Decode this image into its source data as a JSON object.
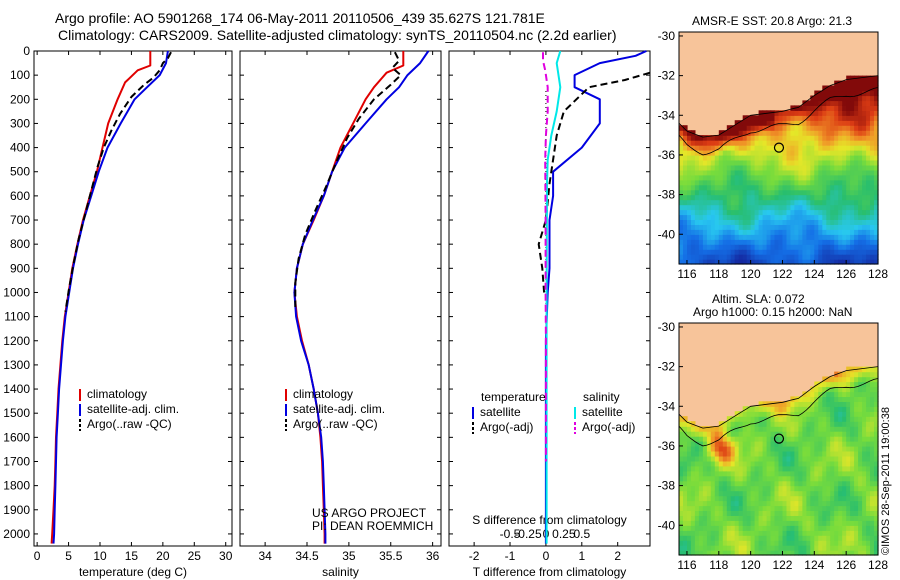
{
  "header": {
    "line1": "Argo profile: AO 5901268_174 06-May-2011 20110506_439 35.627S 121.781E",
    "line2": "Climatology: CARS2009. Satellite-adjusted climatology: synTS_20110504.nc (2.2d earlier)"
  },
  "credits": {
    "project": "US ARGO PROJECT",
    "pi": "PI: DEAN ROEMMICH",
    "imos": "©IMOS 28-Sep-2011 19:00:38"
  },
  "colors": {
    "climatology": "#e00000",
    "satellite": "#0000e0",
    "argo": "#000000",
    "salinity_satellite": "#00e8e8",
    "salinity_argo": "#e000e0",
    "land": "#f7c49a"
  },
  "chart_data": [
    {
      "type": "line",
      "panel": "temperature",
      "xlabel": "temperature (deg C)",
      "ylabel": "",
      "xlim": [
        -0.5,
        31
      ],
      "ylim": [
        2050,
        0
      ],
      "xticks": [
        0,
        5,
        10,
        15,
        20,
        25,
        30
      ],
      "yticks": [
        0,
        100,
        200,
        300,
        400,
        500,
        600,
        700,
        800,
        900,
        1000,
        1100,
        1200,
        1300,
        1400,
        1500,
        1600,
        1700,
        1800,
        1900,
        2000
      ],
      "legend": [
        "climatology",
        "satellite-adj. clim.",
        "Argo(..raw -QC)"
      ],
      "series": [
        {
          "name": "climatology",
          "style": "solid",
          "points": [
            [
              18,
              0
            ],
            [
              18,
              60
            ],
            [
              16,
              80
            ],
            [
              14,
              130
            ],
            [
              12.8,
              200
            ],
            [
              11.3,
              300
            ],
            [
              10.4,
              400
            ],
            [
              9.5,
              500
            ],
            [
              8.4,
              600
            ],
            [
              7.3,
              700
            ],
            [
              6.4,
              800
            ],
            [
              5.6,
              900
            ],
            [
              5,
              1000
            ],
            [
              4.4,
              1100
            ],
            [
              4,
              1200
            ],
            [
              3.7,
              1300
            ],
            [
              3.4,
              1400
            ],
            [
              3.2,
              1500
            ],
            [
              3,
              1600
            ],
            [
              2.9,
              1700
            ],
            [
              2.8,
              1800
            ],
            [
              2.6,
              1900
            ],
            [
              2.4,
              2000
            ],
            [
              2.3,
              2040
            ]
          ]
        },
        {
          "name": "satellite-adj. clim.",
          "style": "solid",
          "points": [
            [
              20.8,
              0
            ],
            [
              20.5,
              50
            ],
            [
              19.5,
              100
            ],
            [
              17.5,
              150
            ],
            [
              15.5,
              200
            ],
            [
              13.3,
              300
            ],
            [
              11.2,
              400
            ],
            [
              9.8,
              500
            ],
            [
              8.6,
              600
            ],
            [
              7.4,
              700
            ],
            [
              6.5,
              800
            ],
            [
              5.7,
              900
            ],
            [
              5.1,
              1000
            ],
            [
              4.5,
              1100
            ],
            [
              4.1,
              1200
            ],
            [
              3.8,
              1300
            ],
            [
              3.5,
              1400
            ],
            [
              3.3,
              1500
            ],
            [
              3.1,
              1600
            ],
            [
              3,
              1700
            ],
            [
              2.9,
              1800
            ],
            [
              2.8,
              1900
            ],
            [
              2.7,
              2000
            ],
            [
              2.6,
              2040
            ]
          ]
        },
        {
          "name": "Argo(..raw -QC)",
          "style": "dashed",
          "points": [
            [
              21.3,
              5
            ],
            [
              20.8,
              30
            ],
            [
              20,
              50
            ],
            [
              19.5,
              80
            ],
            [
              18.5,
              110
            ],
            [
              17,
              140
            ],
            [
              15,
              190
            ],
            [
              13.2,
              260
            ],
            [
              11.8,
              330
            ],
            [
              10.6,
              400
            ],
            [
              9.6,
              480
            ],
            [
              8.6,
              580
            ],
            [
              7.6,
              680
            ],
            [
              6.6,
              780
            ],
            [
              5.8,
              880
            ],
            [
              5.1,
              980
            ],
            [
              4.5,
              1080
            ]
          ]
        }
      ]
    },
    {
      "type": "line",
      "panel": "salinity",
      "xlabel": "salinity",
      "ylabel": "",
      "xlim": [
        33.7,
        36.1
      ],
      "ylim": [
        2050,
        0
      ],
      "xticks": [
        34,
        34.5,
        35,
        35.5,
        36
      ],
      "legend": [
        "climatology",
        "satellite-adj. clim.",
        "Argo(..raw -QC)"
      ],
      "series": [
        {
          "name": "climatology",
          "style": "solid",
          "points": [
            [
              35.65,
              0
            ],
            [
              35.65,
              60
            ],
            [
              35.45,
              90
            ],
            [
              35.3,
              150
            ],
            [
              35.2,
              200
            ],
            [
              35.05,
              300
            ],
            [
              34.9,
              400
            ],
            [
              34.8,
              500
            ],
            [
              34.7,
              600
            ],
            [
              34.58,
              700
            ],
            [
              34.45,
              800
            ],
            [
              34.38,
              900
            ],
            [
              34.35,
              1000
            ],
            [
              34.38,
              1100
            ],
            [
              34.44,
              1200
            ],
            [
              34.52,
              1300
            ],
            [
              34.58,
              1400
            ],
            [
              34.63,
              1500
            ],
            [
              34.66,
              1600
            ],
            [
              34.68,
              1700
            ],
            [
              34.69,
              1800
            ],
            [
              34.7,
              1900
            ],
            [
              34.71,
              2000
            ],
            [
              34.71,
              2040
            ]
          ]
        },
        {
          "name": "satellite-adj. clim.",
          "style": "solid",
          "points": [
            [
              35.95,
              0
            ],
            [
              35.85,
              50
            ],
            [
              35.7,
              100
            ],
            [
              35.6,
              150
            ],
            [
              35.45,
              200
            ],
            [
              35.2,
              300
            ],
            [
              34.95,
              400
            ],
            [
              34.8,
              500
            ],
            [
              34.7,
              600
            ],
            [
              34.57,
              700
            ],
            [
              34.45,
              800
            ],
            [
              34.38,
              900
            ],
            [
              34.35,
              1000
            ],
            [
              34.37,
              1100
            ],
            [
              34.43,
              1200
            ],
            [
              34.52,
              1300
            ],
            [
              34.58,
              1400
            ],
            [
              34.63,
              1500
            ],
            [
              34.67,
              1600
            ],
            [
              34.69,
              1700
            ],
            [
              34.7,
              1800
            ],
            [
              34.71,
              1900
            ],
            [
              34.72,
              2000
            ],
            [
              34.72,
              2040
            ]
          ]
        },
        {
          "name": "Argo(..raw -QC)",
          "style": "dashed",
          "points": [
            [
              35.55,
              5
            ],
            [
              35.6,
              40
            ],
            [
              35.52,
              70
            ],
            [
              35.62,
              100
            ],
            [
              35.5,
              140
            ],
            [
              35.3,
              200
            ],
            [
              35.12,
              280
            ],
            [
              34.98,
              360
            ],
            [
              34.85,
              460
            ],
            [
              34.73,
              560
            ],
            [
              34.6,
              660
            ],
            [
              34.48,
              760
            ],
            [
              34.4,
              860
            ],
            [
              34.36,
              960
            ],
            [
              34.36,
              1060
            ]
          ]
        }
      ]
    },
    {
      "type": "line",
      "panel": "difference",
      "xlabel": "T difference from climatology",
      "xlabel_top": "S difference from climatology",
      "ylabel": "",
      "xlim": [
        -2.7,
        2.9
      ],
      "ylim": [
        2050,
        0
      ],
      "xticks": [
        -2,
        -1,
        0,
        1,
        2
      ],
      "xticks_top": [
        "-0.5",
        "-0.25",
        "0",
        "0.25",
        "0.5"
      ],
      "legend_temperature": {
        "heading": "temperature",
        "items": [
          "satellite",
          "Argo(-adj)"
        ]
      },
      "legend_salinity": {
        "heading": "salinity",
        "items": [
          "satellite",
          "Argo(-adj)"
        ]
      },
      "series": [
        {
          "name": "temperature satellite",
          "style": "solid",
          "points": [
            [
              2.8,
              0
            ],
            [
              2.5,
              20
            ],
            [
              1.5,
              50
            ],
            [
              0.8,
              100
            ],
            [
              0.8,
              150
            ],
            [
              1.5,
              200
            ],
            [
              1.5,
              300
            ],
            [
              1,
              400
            ],
            [
              0.2,
              500
            ],
            [
              0.2,
              600
            ],
            [
              0.1,
              700
            ],
            [
              0.1,
              800
            ],
            [
              0.1,
              900
            ],
            [
              0.05,
              1000
            ],
            [
              0,
              1200
            ],
            [
              0,
              2040
            ]
          ]
        },
        {
          "name": "temperature Argo(-adj)",
          "style": "dashed",
          "points": [
            [
              2.9,
              90
            ],
            [
              2.2,
              120
            ],
            [
              1.2,
              150
            ],
            [
              0.5,
              250
            ],
            [
              0.3,
              350
            ],
            [
              0.2,
              450
            ],
            [
              0.1,
              550
            ],
            [
              0,
              700
            ],
            [
              -0.2,
              800
            ],
            [
              -0.1,
              900
            ],
            [
              -0.05,
              1000
            ]
          ]
        },
        {
          "name": "salinity satellite",
          "style": "solid",
          "points": [
            [
              0.4,
              0
            ],
            [
              0.3,
              50
            ],
            [
              0.4,
              150
            ],
            [
              0.3,
              250
            ],
            [
              0.15,
              350
            ],
            [
              0.05,
              450
            ],
            [
              0.03,
              550
            ],
            [
              0.02,
              1000
            ],
            [
              0.02,
              2040
            ]
          ]
        },
        {
          "name": "salinity Argo(-adj)",
          "style": "dashed",
          "points": [
            [
              -0.08,
              5
            ],
            [
              -0.08,
              40
            ],
            [
              -0.02,
              80
            ],
            [
              0.05,
              150
            ],
            [
              0.05,
              250
            ],
            [
              0.0,
              350
            ],
            [
              -0.02,
              450
            ],
            [
              -0.01,
              700
            ],
            [
              -0.01,
              1000
            ],
            [
              0,
              1200
            ],
            [
              0,
              1700
            ]
          ]
        }
      ]
    },
    {
      "type": "heatmap",
      "panel": "map-sst",
      "title": "AMSR-E SST: 20.8 Argo: 21.3",
      "xlim": [
        115.5,
        128
      ],
      "ylim": [
        -41.5,
        -29.8
      ],
      "xticks": [
        116,
        118,
        120,
        122,
        124,
        126,
        128
      ],
      "yticks": [
        -30,
        -32,
        -34,
        -36,
        -38,
        -40
      ],
      "argo_position": [
        121.78,
        -35.63
      ]
    },
    {
      "type": "heatmap",
      "panel": "map-sla",
      "title_line1": "Altim. SLA: 0.072",
      "title_line2": "Argo h1000: 0.15 h2000: NaN",
      "xlim": [
        115.5,
        128
      ],
      "ylim": [
        -41.5,
        -29.8
      ],
      "xticks": [
        116,
        118,
        120,
        122,
        124,
        126,
        128
      ],
      "yticks": [
        -30,
        -32,
        -34,
        -36,
        -38,
        -40
      ],
      "argo_position": [
        121.78,
        -35.63
      ]
    }
  ]
}
